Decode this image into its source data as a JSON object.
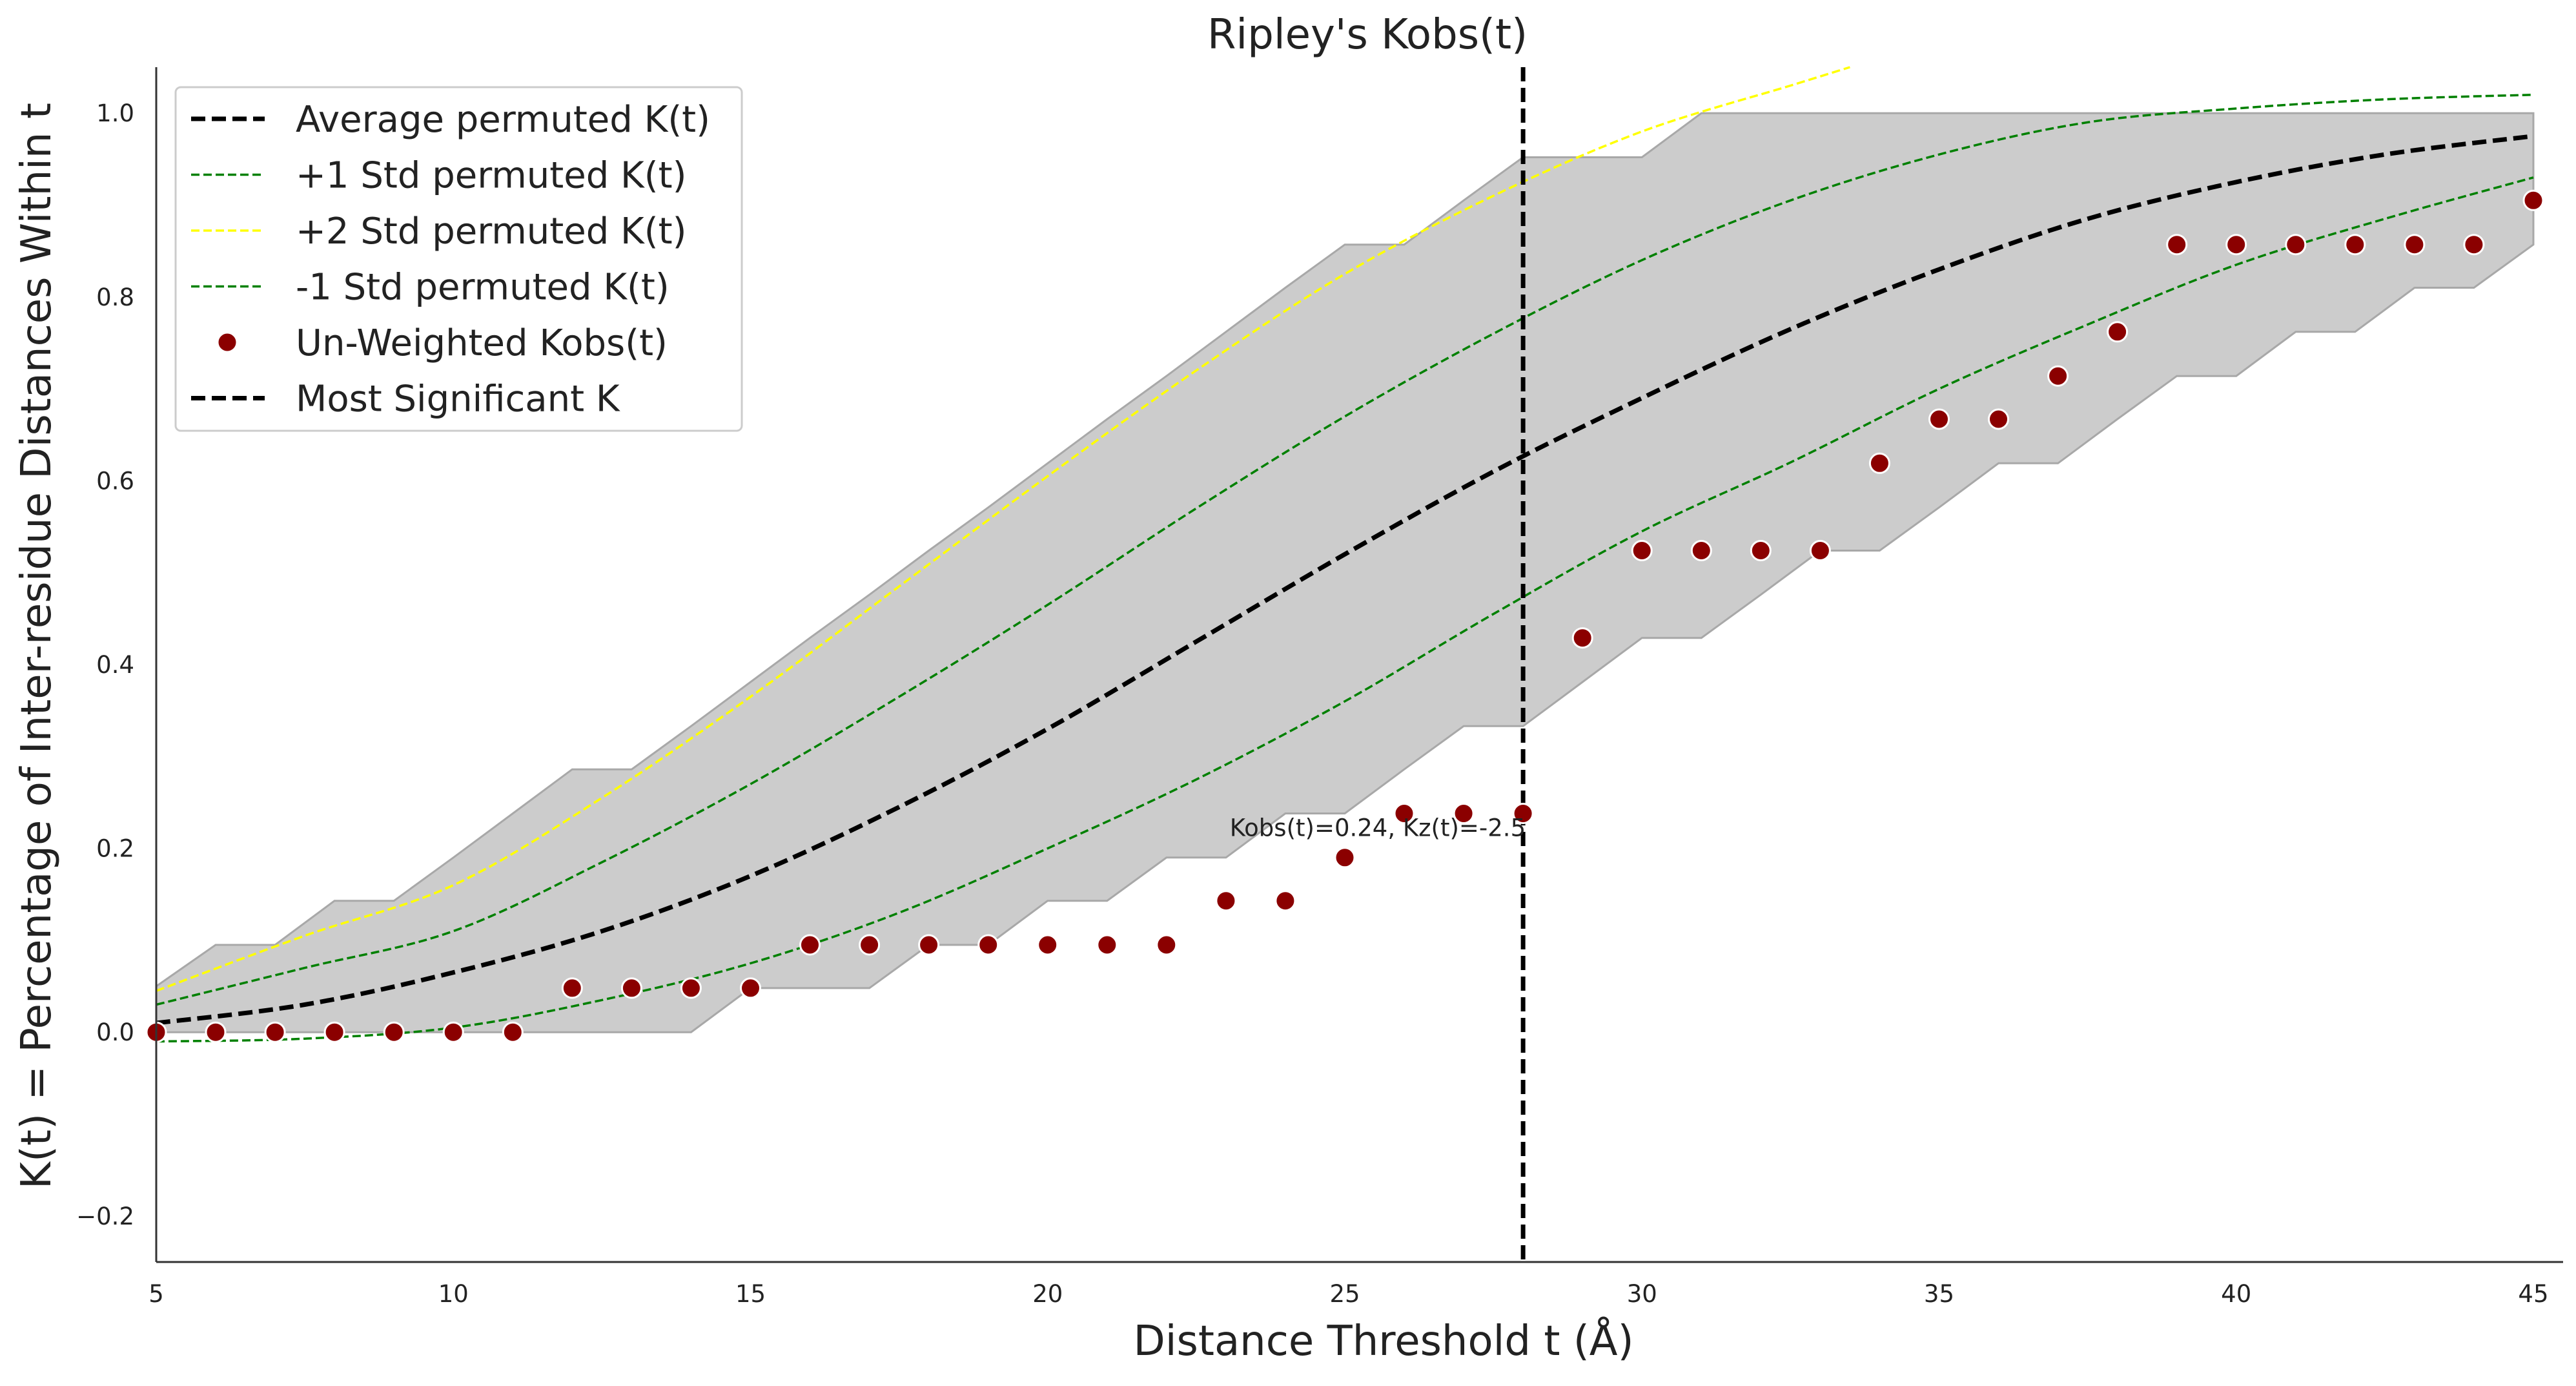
{
  "chart_data": {
    "type": "scatter",
    "title": "Ripley's Kobs(t)",
    "xlabel": "Distance Threshold t (Å)",
    "ylabel": "K(t) = Percentage of Inter-residue Distances Within t",
    "xlim": [
      5,
      45.5
    ],
    "ylim": [
      -0.25,
      1.05
    ],
    "xticks": [
      5,
      10,
      15,
      20,
      25,
      30,
      35,
      40,
      45
    ],
    "yticks": [
      -0.2,
      0.0,
      0.2,
      0.4,
      0.6,
      0.8,
      1.0
    ],
    "ytick_labels": [
      "−0.2",
      "0.0",
      "0.2",
      "0.4",
      "0.6",
      "0.8",
      "1.0"
    ],
    "grid": false,
    "legend_position": "upper-left",
    "envelope": {
      "x": [
        5,
        6,
        7,
        8,
        9,
        10,
        11,
        12,
        13,
        14,
        15,
        16,
        17,
        18,
        19,
        20,
        21,
        22,
        23,
        24,
        25,
        26,
        27,
        28,
        29,
        30,
        31,
        32,
        33,
        34,
        35,
        36,
        37,
        38,
        39,
        40,
        41,
        42,
        43,
        44,
        45
      ],
      "upper": [
        0.05,
        0.095,
        0.095,
        0.143,
        0.143,
        0.19,
        0.238,
        0.286,
        0.286,
        0.333,
        0.381,
        0.429,
        0.476,
        0.524,
        0.571,
        0.619,
        0.667,
        0.714,
        0.762,
        0.81,
        0.857,
        0.857,
        0.905,
        0.952,
        0.952,
        0.952,
        1.0,
        1.0,
        1.0,
        1.0,
        1.0,
        1.0,
        1.0,
        1.0,
        1.0,
        1.0,
        1.0,
        1.0,
        1.0,
        1.0,
        1.0
      ],
      "lower": [
        0.0,
        0.0,
        0.0,
        0.0,
        0.0,
        0.0,
        0.0,
        0.0,
        0.0,
        0.0,
        0.048,
        0.048,
        0.048,
        0.095,
        0.095,
        0.143,
        0.143,
        0.19,
        0.19,
        0.238,
        0.238,
        0.286,
        0.333,
        0.333,
        0.381,
        0.429,
        0.429,
        0.476,
        0.524,
        0.524,
        0.571,
        0.619,
        0.619,
        0.667,
        0.714,
        0.714,
        0.762,
        0.762,
        0.81,
        0.81,
        0.857
      ]
    },
    "series": [
      {
        "name": "Average permuted K(t)",
        "style": "dashed",
        "color": "#000000",
        "x": [
          5,
          7.5,
          10,
          12.5,
          15,
          17.5,
          20,
          22.5,
          25,
          27.5,
          30,
          32.5,
          35,
          37.5,
          40,
          42.5,
          45
        ],
        "values": [
          0.01,
          0.03,
          0.065,
          0.11,
          0.17,
          0.245,
          0.33,
          0.425,
          0.52,
          0.61,
          0.69,
          0.765,
          0.83,
          0.885,
          0.925,
          0.955,
          0.975
        ]
      },
      {
        "name": "+1 Std permuted K(t)",
        "style": "dashed-thin",
        "color": "#008000",
        "x": [
          5,
          7.5,
          10,
          12.5,
          15,
          17.5,
          20,
          22.5,
          25,
          27.5,
          30,
          32.5,
          35,
          37.5,
          40,
          42.5,
          45
        ],
        "values": [
          0.03,
          0.07,
          0.11,
          0.185,
          0.27,
          0.365,
          0.465,
          0.57,
          0.67,
          0.76,
          0.84,
          0.905,
          0.955,
          0.99,
          1.005,
          1.015,
          1.02
        ]
      },
      {
        "name": "+2 Std permuted K(t)",
        "style": "dashed-thin",
        "color": "#ffff00",
        "x": [
          5,
          7.5,
          10,
          12.5,
          15,
          17.5,
          20,
          22.5,
          25,
          27.5,
          30,
          32.5,
          33.5
        ],
        "values": [
          0.045,
          0.105,
          0.16,
          0.255,
          0.365,
          0.485,
          0.605,
          0.72,
          0.825,
          0.91,
          0.98,
          1.03,
          1.05
        ]
      },
      {
        "name": "-1 Std permuted K(t)",
        "style": "dashed-thin",
        "color": "#008000",
        "x": [
          5,
          7.5,
          10,
          12.5,
          15,
          17.5,
          20,
          22.5,
          25,
          27.5,
          30,
          32.5,
          35,
          37.5,
          40,
          42.5,
          45
        ],
        "values": [
          -0.01,
          -0.007,
          0.005,
          0.035,
          0.075,
          0.13,
          0.2,
          0.275,
          0.36,
          0.455,
          0.545,
          0.62,
          0.7,
          0.77,
          0.835,
          0.885,
          0.93
        ]
      },
      {
        "name": "Un-Weighted Kobs(t)",
        "style": "markers",
        "color": "#8b0000",
        "x": [
          5,
          6,
          7,
          8,
          9,
          10,
          11,
          12,
          13,
          14,
          15,
          16,
          17,
          18,
          19,
          20,
          21,
          22,
          23,
          24,
          25,
          26,
          27,
          28,
          29,
          30,
          31,
          32,
          33,
          34,
          35,
          36,
          37,
          38,
          39,
          40,
          41,
          42,
          43,
          44,
          45
        ],
        "values": [
          0.0,
          0.0,
          0.0,
          0.0,
          0.0,
          0.0,
          0.0,
          0.048,
          0.048,
          0.048,
          0.048,
          0.095,
          0.095,
          0.095,
          0.095,
          0.095,
          0.095,
          0.095,
          0.143,
          0.143,
          0.19,
          0.238,
          0.238,
          0.238,
          0.429,
          0.524,
          0.524,
          0.524,
          0.524,
          0.619,
          0.667,
          0.667,
          0.714,
          0.762,
          0.857,
          0.857,
          0.857,
          0.857,
          0.857,
          0.857,
          0.905
        ]
      },
      {
        "name": "Most Significant K",
        "style": "vline",
        "color": "#000000",
        "x": [
          28,
          28
        ],
        "values": [
          -0.25,
          1.05
        ]
      }
    ],
    "annotation": {
      "text": "Kobs(t)=0.24, Kz(t)=-2.5",
      "x": 28,
      "y": 0.238,
      "color": "#8b0000"
    }
  }
}
